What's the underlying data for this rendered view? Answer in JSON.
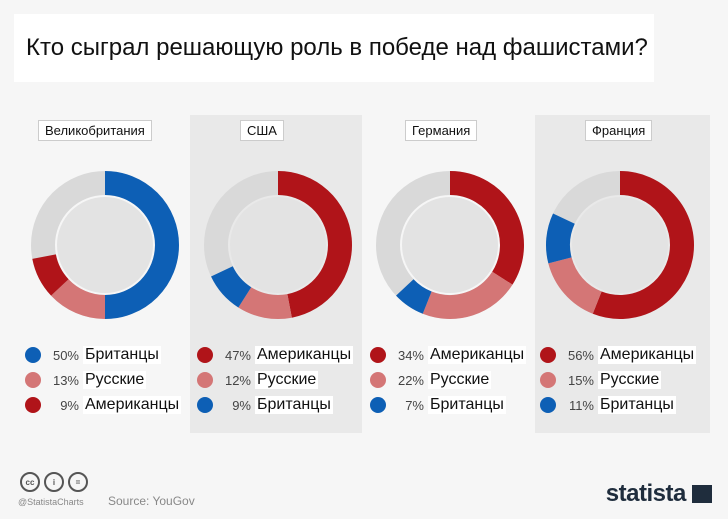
{
  "title": "Кто сыграл решающую роль в победе над фашистами?",
  "colors": {
    "red": "#b01419",
    "pink": "#d47676",
    "blue": "#0d5fb5",
    "rest": "#d9d9d9",
    "hole": "#e3e3e3"
  },
  "chart_data": [
    {
      "type": "pie",
      "title": "Великобритания",
      "series": [
        {
          "name": "Британцы",
          "value": 50,
          "color": "blue"
        },
        {
          "name": "Русские",
          "value": 13,
          "color": "pink"
        },
        {
          "name": "Американцы",
          "value": 9,
          "color": "red"
        }
      ]
    },
    {
      "type": "pie",
      "title": "США",
      "series": [
        {
          "name": "Американцы",
          "value": 47,
          "color": "red"
        },
        {
          "name": "Русские",
          "value": 12,
          "color": "pink"
        },
        {
          "name": "Британцы",
          "value": 9,
          "color": "blue"
        }
      ]
    },
    {
      "type": "pie",
      "title": "Германия",
      "series": [
        {
          "name": "Американцы",
          "value": 34,
          "color": "red"
        },
        {
          "name": "Русские",
          "value": 22,
          "color": "pink"
        },
        {
          "name": "Британцы",
          "value": 7,
          "color": "blue"
        }
      ]
    },
    {
      "type": "pie",
      "title": "Франция",
      "series": [
        {
          "name": "Американцы",
          "value": 56,
          "color": "red"
        },
        {
          "name": "Русские",
          "value": 15,
          "color": "pink"
        },
        {
          "name": "Британцы",
          "value": 11,
          "color": "blue"
        }
      ]
    }
  ],
  "footer": {
    "handle": "@StatistaCharts",
    "source": "Source: YouGov",
    "brand": "statista"
  },
  "cc_icons": [
    "cc",
    "by",
    "nd"
  ]
}
